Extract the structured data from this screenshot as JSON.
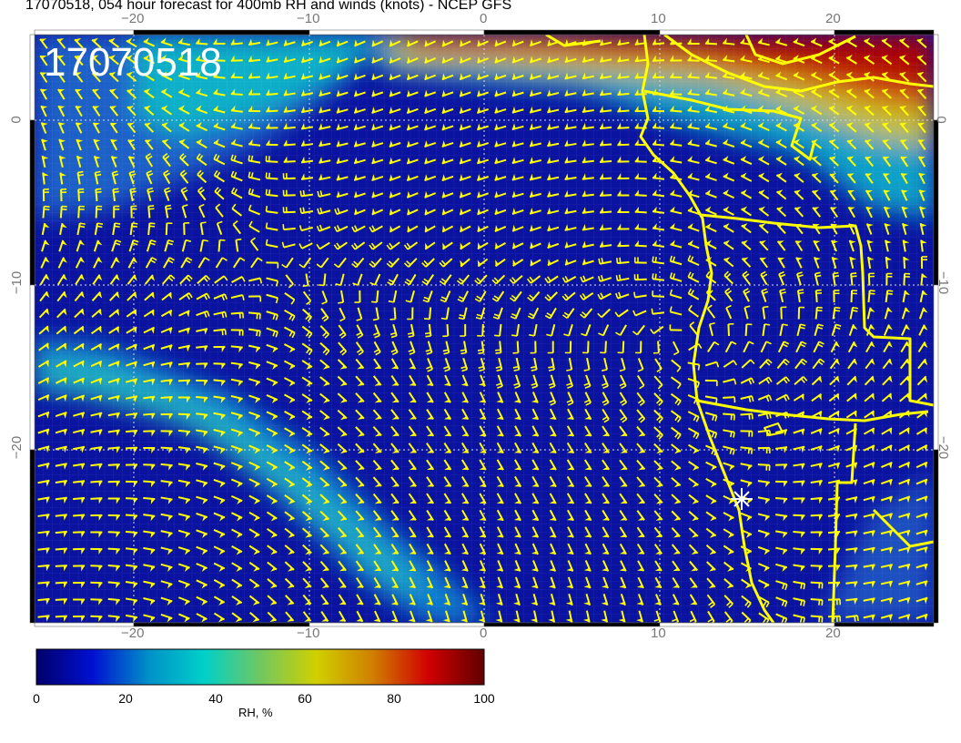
{
  "title": "17070518, 054 hour forecast for 400mb RH and winds (knots) - NCEP GFS",
  "map_label": "17070518",
  "axes": {
    "lon_ticks": [
      "−20",
      "−10",
      "0",
      "10",
      "20"
    ],
    "lat_ticks": [
      "0",
      "−10",
      "−20"
    ]
  },
  "colorbar": {
    "label": "RH, %",
    "ticks": [
      "0",
      "20",
      "40",
      "60",
      "80",
      "100"
    ],
    "colors": [
      "#00006a",
      "#0010d0",
      "#0090c8",
      "#00d0c8",
      "#70c860",
      "#d0d000",
      "#d08000",
      "#d00000",
      "#600000"
    ]
  },
  "colors": {
    "wind_barbs": "#ffff00",
    "coastline": "#ffff00",
    "field_background": "#0a12a0"
  }
}
